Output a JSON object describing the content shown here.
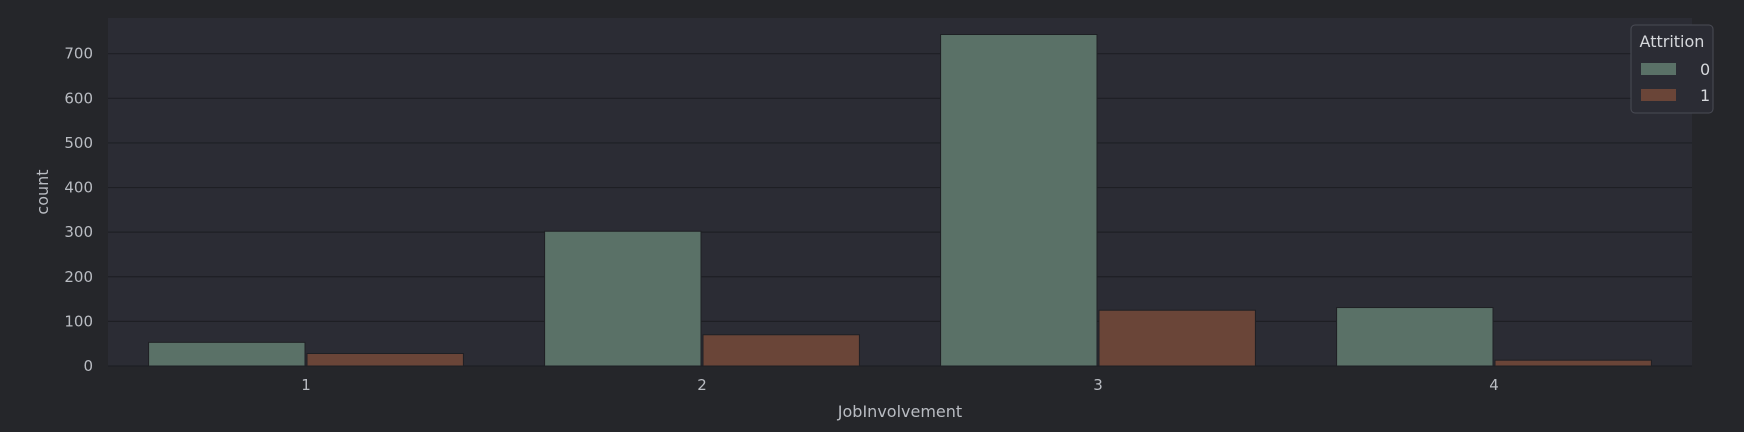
{
  "chart_data": {
    "type": "bar",
    "xlabel": "JobInvolvement",
    "ylabel": "count",
    "categories": [
      "1",
      "2",
      "3",
      "4"
    ],
    "series": [
      {
        "name": "0",
        "values": [
          53,
          302,
          743,
          131
        ],
        "color": "#5a7167"
      },
      {
        "name": "1",
        "values": [
          28,
          70,
          125,
          13
        ],
        "color": "#6a4538"
      }
    ],
    "yticks": [
      0,
      100,
      200,
      300,
      400,
      500,
      600,
      700
    ],
    "ylim": [
      0,
      780
    ],
    "grid": true,
    "legend": {
      "title": "Attrition",
      "placement": "top-right"
    }
  },
  "colors": {
    "background": "#1f2024",
    "plot_background": "#2b2c34",
    "grid": "#1e1f24",
    "text": "#b9bcc2"
  }
}
